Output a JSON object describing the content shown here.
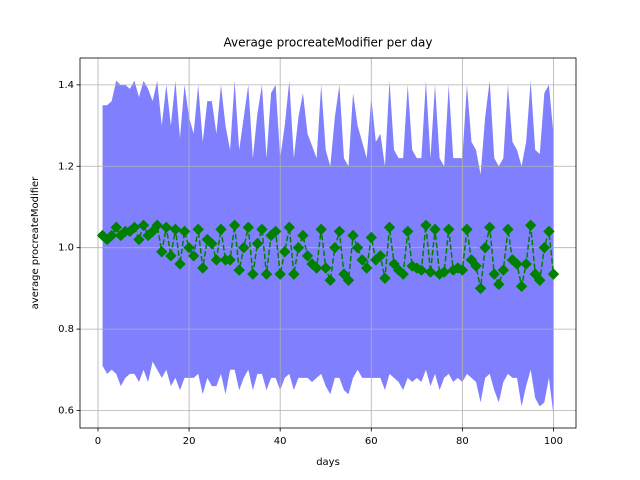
{
  "chart_data": {
    "type": "line",
    "title": "Average procreateModifier per day",
    "xlabel": "days",
    "ylabel": "average procreateModifier",
    "x": [
      1,
      2,
      3,
      4,
      5,
      6,
      7,
      8,
      9,
      10,
      11,
      12,
      13,
      14,
      15,
      16,
      17,
      18,
      19,
      20,
      21,
      22,
      23,
      24,
      25,
      26,
      27,
      28,
      29,
      30,
      31,
      32,
      33,
      34,
      35,
      36,
      37,
      38,
      39,
      40,
      41,
      42,
      43,
      44,
      45,
      46,
      47,
      48,
      49,
      50,
      51,
      52,
      53,
      54,
      55,
      56,
      57,
      58,
      59,
      60,
      61,
      62,
      63,
      64,
      65,
      66,
      67,
      68,
      69,
      70,
      71,
      72,
      73,
      74,
      75,
      76,
      77,
      78,
      79,
      80,
      81,
      82,
      83,
      84,
      85,
      86,
      87,
      88,
      89,
      90,
      91,
      92,
      93,
      94,
      95,
      96,
      97,
      98,
      99,
      100
    ],
    "series": [
      {
        "color": "#008000",
        "values": [
          1.03,
          1.02,
          1.03,
          1.05,
          1.03,
          1.04,
          1.04,
          1.05,
          1.02,
          1.055,
          1.03,
          1.04,
          1.055,
          0.99,
          1.05,
          0.98,
          1.045,
          0.96,
          1.04,
          1.0,
          0.98,
          1.045,
          0.95,
          1.02,
          1.01,
          0.97,
          1.045,
          0.97,
          0.97,
          1.055,
          0.945,
          1.0,
          1.05,
          0.935,
          1.01,
          1.045,
          0.935,
          1.03,
          1.04,
          0.935,
          0.99,
          1.05,
          0.935,
          1.0,
          1.03,
          0.98,
          0.96,
          0.95,
          1.045,
          0.95,
          0.92,
          1.0,
          1.04,
          0.935,
          0.92,
          1.03,
          1.0,
          0.97,
          0.95,
          1.025,
          0.97,
          0.98,
          0.925,
          1.05,
          0.96,
          0.945,
          0.935,
          1.04,
          0.955,
          0.95,
          0.945,
          1.055,
          0.94,
          1.045,
          0.935,
          0.94,
          1.045,
          0.945,
          0.95,
          0.945,
          1.045,
          0.97,
          0.955,
          0.9,
          1.0,
          1.05,
          0.935,
          0.91,
          0.945,
          1.045,
          0.97,
          0.96,
          0.905,
          0.96,
          1.055,
          0.935,
          0.92,
          1.0,
          1.04,
          0.935
        ]
      }
    ],
    "fill": {
      "color": "#8080ff",
      "upper": [
        1.35,
        1.35,
        1.36,
        1.41,
        1.4,
        1.4,
        1.39,
        1.41,
        1.37,
        1.41,
        1.39,
        1.36,
        1.41,
        1.3,
        1.4,
        1.3,
        1.41,
        1.27,
        1.4,
        1.32,
        1.28,
        1.4,
        1.26,
        1.36,
        1.36,
        1.28,
        1.4,
        1.3,
        1.24,
        1.41,
        1.24,
        1.32,
        1.4,
        1.22,
        1.33,
        1.4,
        1.22,
        1.38,
        1.4,
        1.22,
        1.3,
        1.41,
        1.22,
        1.32,
        1.38,
        1.28,
        1.25,
        1.22,
        1.4,
        1.24,
        1.2,
        1.32,
        1.4,
        1.22,
        1.2,
        1.38,
        1.3,
        1.26,
        1.22,
        1.37,
        1.26,
        1.28,
        1.2,
        1.41,
        1.24,
        1.22,
        1.22,
        1.4,
        1.24,
        1.22,
        1.22,
        1.41,
        1.22,
        1.4,
        1.22,
        1.2,
        1.4,
        1.22,
        1.22,
        1.22,
        1.4,
        1.26,
        1.24,
        1.18,
        1.32,
        1.41,
        1.22,
        1.2,
        1.22,
        1.4,
        1.26,
        1.24,
        1.2,
        1.26,
        1.41,
        1.24,
        1.23,
        1.38,
        1.4,
        1.28
      ],
      "lower": [
        0.71,
        0.69,
        0.7,
        0.69,
        0.66,
        0.68,
        0.69,
        0.69,
        0.67,
        0.7,
        0.67,
        0.72,
        0.7,
        0.68,
        0.7,
        0.66,
        0.68,
        0.65,
        0.68,
        0.68,
        0.68,
        0.69,
        0.64,
        0.68,
        0.66,
        0.66,
        0.69,
        0.64,
        0.7,
        0.7,
        0.65,
        0.68,
        0.7,
        0.65,
        0.69,
        0.69,
        0.65,
        0.68,
        0.68,
        0.65,
        0.68,
        0.69,
        0.65,
        0.68,
        0.68,
        0.68,
        0.67,
        0.68,
        0.69,
        0.66,
        0.64,
        0.68,
        0.68,
        0.65,
        0.64,
        0.68,
        0.7,
        0.68,
        0.68,
        0.68,
        0.68,
        0.68,
        0.65,
        0.69,
        0.68,
        0.67,
        0.65,
        0.68,
        0.67,
        0.68,
        0.67,
        0.7,
        0.66,
        0.69,
        0.65,
        0.68,
        0.69,
        0.67,
        0.68,
        0.67,
        0.69,
        0.68,
        0.67,
        0.62,
        0.68,
        0.69,
        0.65,
        0.62,
        0.67,
        0.69,
        0.68,
        0.68,
        0.61,
        0.66,
        0.7,
        0.63,
        0.61,
        0.62,
        0.68,
        0.59
      ]
    },
    "xlim": [
      -3.95,
      104.95
    ],
    "ylim": [
      0.557,
      1.466
    ],
    "xticks": [
      0,
      20,
      40,
      60,
      80,
      100
    ],
    "yticks": [
      0.6,
      0.8,
      {
        "value": 1,
        "label": "1.0"
      },
      1.2,
      1.4
    ],
    "grid": true
  }
}
